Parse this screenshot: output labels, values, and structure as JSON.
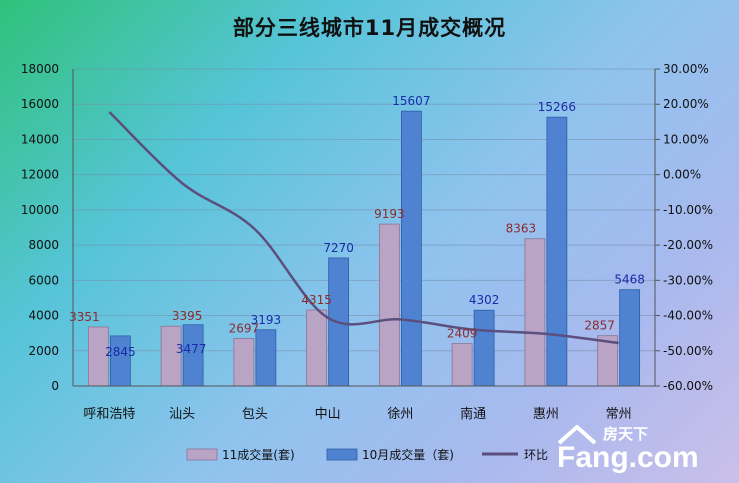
{
  "chart_data": {
    "type": "bar",
    "title": "部分三线城市11月成交概况",
    "categories": [
      "呼和浩特",
      "汕头",
      "包头",
      "中山",
      "徐州",
      "南通",
      "惠州",
      "常州"
    ],
    "series": [
      {
        "name": "11成交量(套)",
        "type": "bar",
        "color": "#b9a4c6",
        "values": [
          3351,
          3395,
          2697,
          4315,
          9193,
          2409,
          8363,
          2857
        ],
        "labels": [
          "3351",
          "3395",
          "2697",
          "4315",
          "9193",
          "2409",
          "8363",
          "2857"
        ]
      },
      {
        "name": "10月成交量（套)",
        "type": "bar",
        "color": "#4f82d1",
        "values": [
          2845,
          3477,
          3193,
          7270,
          15607,
          4302,
          15266,
          5468
        ],
        "labels": [
          "2845",
          "3477",
          "3193",
          "7270",
          "15607",
          "4302",
          "15266",
          "5468"
        ]
      },
      {
        "name": "环比",
        "type": "line",
        "axis": "right",
        "color": "#5b4f7e",
        "values": [
          17.8,
          -2.4,
          -15.5,
          -40.6,
          -41.1,
          -44.0,
          -45.2,
          -47.8
        ]
      }
    ],
    "ylim": [
      0,
      18000
    ],
    "yticks": [
      "0",
      "2000",
      "4000",
      "6000",
      "8000",
      "10000",
      "12000",
      "14000",
      "16000",
      "18000"
    ],
    "y2lim": [
      -60,
      30
    ],
    "y2ticks": [
      "-60.00%",
      "-50.00%",
      "-40.00%",
      "-30.00%",
      "-20.00%",
      "-10.00%",
      "0.00%",
      "10.00%",
      "20.00%",
      "30.00%"
    ],
    "grid": true,
    "legend_position": "bottom"
  },
  "watermark": {
    "brand": "Fang.com",
    "cn": "房天下"
  }
}
